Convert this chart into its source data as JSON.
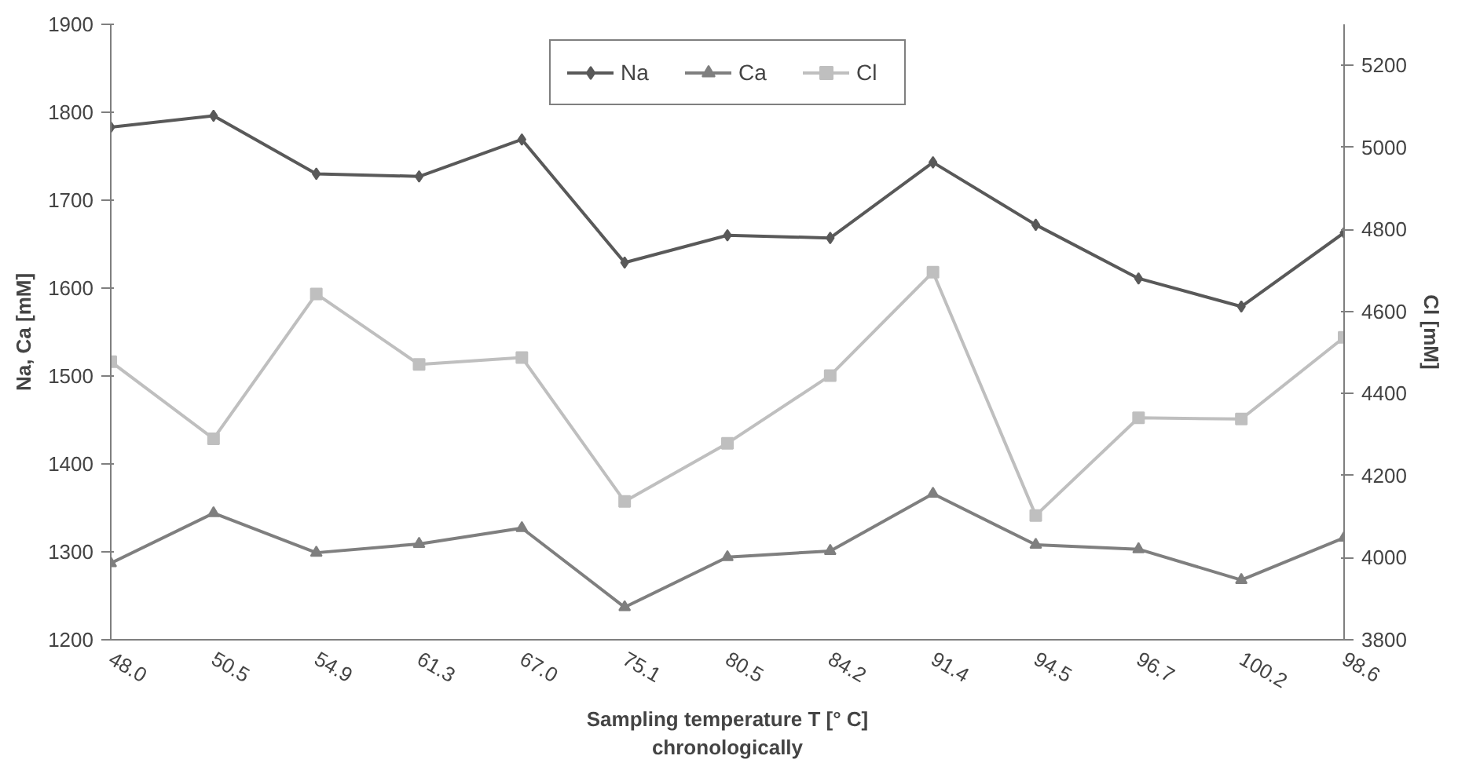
{
  "chart_data": {
    "type": "line",
    "categories": [
      "48.0",
      "50.5",
      "54.9",
      "61.3",
      "67.0",
      "75.1",
      "80.5",
      "84.2",
      "91.4",
      "94.5",
      "96.7",
      "100.2",
      "98.6"
    ],
    "xlabel": "Sampling temperature T [° C]\nchronologically",
    "ylabel": "Na, Ca [mM]",
    "y2label": "Cl [mM]",
    "ylim": [
      1200,
      1900
    ],
    "yticks": [
      1200,
      1300,
      1400,
      1500,
      1600,
      1700,
      1800,
      1900
    ],
    "y2lim": [
      3800,
      5300
    ],
    "y2ticks": [
      3800,
      4000,
      4200,
      4400,
      4600,
      4800,
      5000,
      5200
    ],
    "grid": false,
    "legend": "top",
    "series": [
      {
        "name": "Na",
        "color": "#595959",
        "marker": "diamond",
        "values": [
          1783,
          1796,
          1730,
          1727,
          1769,
          1629,
          1660,
          1657,
          1743,
          1672,
          1611,
          1579,
          1663
        ]
      },
      {
        "name": "Ca",
        "color": "#7f7f7f",
        "marker": "triangle",
        "values": [
          1287,
          1344,
          1299,
          1309,
          1327,
          1237,
          1294,
          1301,
          1366,
          1308,
          1303,
          1268,
          1316
        ]
      },
      {
        "name": "Cl",
        "color": "#bfbfbf",
        "marker": "square",
        "axis": "y2",
        "values": [
          4478,
          4290,
          4643,
          4471,
          4488,
          4137,
          4279,
          4444,
          4696,
          4103,
          4341,
          4338,
          4537
        ]
      }
    ]
  }
}
